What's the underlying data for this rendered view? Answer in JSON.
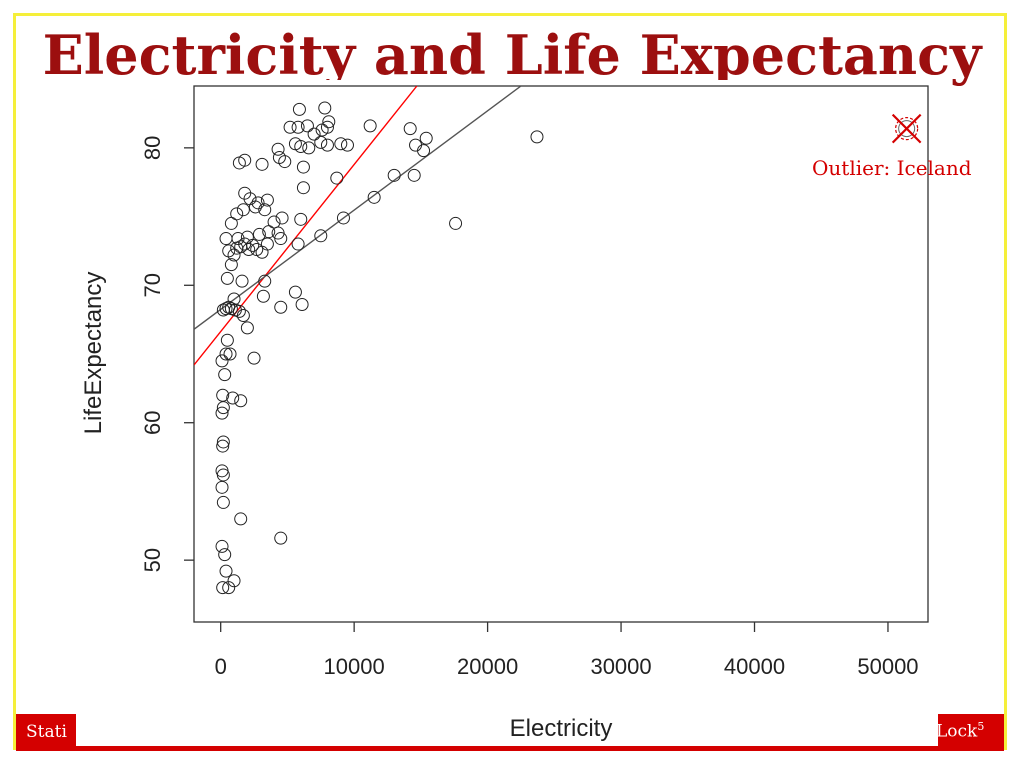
{
  "slide": {
    "title": "Electricity and Life Expectancy",
    "footer_left": "Stati",
    "footer_right": "Lock",
    "footer_right_sup": "5"
  },
  "annotation": {
    "text": "Outlier: Iceland",
    "color": "#d40000"
  },
  "colors": {
    "title": "#9c0f0f",
    "accent": "#d40000",
    "frame": "#f5ef3a",
    "fit_all": "#ff0000",
    "fit_no_outlier": "#555555"
  },
  "chart_data": {
    "type": "scatter",
    "xlabel": "Electricity",
    "ylabel": "LifeExpectancy",
    "xlim": [
      -2000,
      53000
    ],
    "ylim": [
      45.5,
      84.5
    ],
    "xticks": [
      0,
      10000,
      20000,
      30000,
      40000,
      50000
    ],
    "yticks": [
      50,
      60,
      70,
      80
    ],
    "grid": false,
    "points": [
      [
        150,
        48
      ],
      [
        600,
        48
      ],
      [
        1000,
        48.5
      ],
      [
        400,
        49.2
      ],
      [
        300,
        50.4
      ],
      [
        100,
        51
      ],
      [
        1500,
        53
      ],
      [
        4500,
        51.6
      ],
      [
        200,
        54.2
      ],
      [
        100,
        55.3
      ],
      [
        200,
        56.2
      ],
      [
        100,
        56.5
      ],
      [
        150,
        58.3
      ],
      [
        200,
        58.6
      ],
      [
        100,
        60.7
      ],
      [
        200,
        61.1
      ],
      [
        150,
        62
      ],
      [
        900,
        61.8
      ],
      [
        1500,
        61.6
      ],
      [
        2500,
        64.7
      ],
      [
        300,
        63.5
      ],
      [
        100,
        64.5
      ],
      [
        400,
        65
      ],
      [
        700,
        65
      ],
      [
        500,
        66
      ],
      [
        200,
        68.2
      ],
      [
        400,
        68.3
      ],
      [
        600,
        68.4
      ],
      [
        800,
        68.3
      ],
      [
        1100,
        68.2
      ],
      [
        1400,
        68.1
      ],
      [
        1700,
        67.8
      ],
      [
        2000,
        66.9
      ],
      [
        1000,
        69
      ],
      [
        3200,
        69.2
      ],
      [
        3300,
        70.3
      ],
      [
        4500,
        68.4
      ],
      [
        5600,
        69.5
      ],
      [
        6100,
        68.6
      ],
      [
        1600,
        70.3
      ],
      [
        500,
        70.5
      ],
      [
        800,
        71.5
      ],
      [
        1000,
        72.2
      ],
      [
        600,
        72.5
      ],
      [
        1200,
        72.7
      ],
      [
        1500,
        72.8
      ],
      [
        1800,
        73
      ],
      [
        2100,
        72.6
      ],
      [
        2400,
        72.9
      ],
      [
        2700,
        72.6
      ],
      [
        3100,
        72.4
      ],
      [
        3500,
        73
      ],
      [
        1300,
        73.4
      ],
      [
        2000,
        73.5
      ],
      [
        2900,
        73.7
      ],
      [
        3600,
        73.9
      ],
      [
        4300,
        73.8
      ],
      [
        4500,
        73.4
      ],
      [
        5800,
        73
      ],
      [
        7500,
        73.6
      ],
      [
        400,
        73.4
      ],
      [
        800,
        74.5
      ],
      [
        1200,
        75.2
      ],
      [
        1700,
        75.5
      ],
      [
        2600,
        75.7
      ],
      [
        2800,
        76
      ],
      [
        3500,
        76.2
      ],
      [
        4000,
        74.6
      ],
      [
        4600,
        74.9
      ],
      [
        6000,
        74.8
      ],
      [
        9200,
        74.9
      ],
      [
        1800,
        76.7
      ],
      [
        2200,
        76.3
      ],
      [
        3300,
        75.5
      ],
      [
        6200,
        77.1
      ],
      [
        8700,
        77.8
      ],
      [
        11500,
        76.4
      ],
      [
        13000,
        78
      ],
      [
        14500,
        78
      ],
      [
        17600,
        74.5
      ],
      [
        1400,
        78.9
      ],
      [
        1800,
        79.1
      ],
      [
        3100,
        78.8
      ],
      [
        4400,
        79.3
      ],
      [
        4800,
        79
      ],
      [
        6200,
        78.6
      ],
      [
        4300,
        79.9
      ],
      [
        5600,
        80.3
      ],
      [
        6000,
        80.1
      ],
      [
        6600,
        80
      ],
      [
        7500,
        80.4
      ],
      [
        8000,
        80.2
      ],
      [
        9000,
        80.3
      ],
      [
        9500,
        80.2
      ],
      [
        14600,
        80.2
      ],
      [
        15200,
        79.8
      ],
      [
        15400,
        80.7
      ],
      [
        23700,
        80.8
      ],
      [
        5200,
        81.5
      ],
      [
        5800,
        81.5
      ],
      [
        6500,
        81.6
      ],
      [
        7600,
        81.3
      ],
      [
        8000,
        81.5
      ],
      [
        11200,
        81.6
      ],
      [
        14200,
        81.4
      ],
      [
        5900,
        82.8
      ],
      [
        7800,
        82.9
      ],
      [
        8100,
        81.9
      ],
      [
        7000,
        81
      ]
    ],
    "outlier_point": [
      51400,
      81.4
    ],
    "fit_lines": [
      {
        "name": "",
        "color": "#ff0000",
        "x": [
          -2000,
          14700
        ],
        "y": [
          64.2,
          84.5
        ]
      },
      {
        "name": "",
        "color": "#555555",
        "x": [
          -2000,
          22500
        ],
        "y": [
          66.8,
          84.5
        ]
      }
    ]
  }
}
